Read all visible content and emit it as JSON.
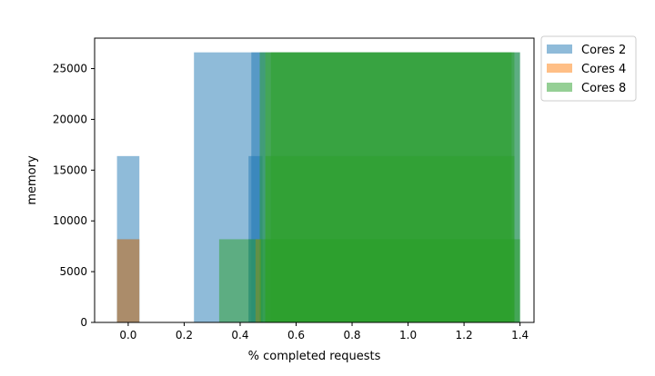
{
  "chart_data": {
    "type": "bar",
    "subtype": "overlapping histogram (alpha 0.5)",
    "title": "",
    "xlabel": "% completed requests",
    "ylabel": "memory",
    "xlim": [
      -0.12,
      1.45
    ],
    "ylim": [
      0,
      28000
    ],
    "xticks": [
      0.0,
      0.2,
      0.4,
      0.6,
      0.8,
      1.0,
      1.2,
      1.4
    ],
    "xtick_labels": [
      "0.0",
      "0.2",
      "0.4",
      "0.6",
      "0.8",
      "1.0",
      "1.2",
      "1.4"
    ],
    "yticks": [
      0,
      5000,
      10000,
      15000,
      20000,
      25000
    ],
    "ytick_labels": [
      "0",
      "5000",
      "10000",
      "15000",
      "20000",
      "25000"
    ],
    "grid": false,
    "legend_position": "outside top-right",
    "series": [
      {
        "name": "Cores 2",
        "color": "#1f77b4",
        "bars": [
          {
            "x0": -0.04,
            "x1": 0.04,
            "value": 16384
          },
          {
            "x0": -0.04,
            "x1": 0.04,
            "value": 8192
          },
          {
            "x0": 0.235,
            "x1": 1.4,
            "value": 26600
          },
          {
            "x0": 0.44,
            "x1": 0.48,
            "value": 26600
          },
          {
            "x0": 0.43,
            "x1": 0.48,
            "value": 16384
          },
          {
            "x0": 0.43,
            "x1": 0.48,
            "value": 8192
          },
          {
            "x0": 0.48,
            "x1": 0.49,
            "value": 26600
          }
        ]
      },
      {
        "name": "Cores 4",
        "color": "#ff7f0e",
        "bars": [
          {
            "x0": -0.04,
            "x1": 0.04,
            "value": 8192
          },
          {
            "x0": 0.455,
            "x1": 0.475,
            "value": 8192
          }
        ]
      },
      {
        "name": "Cores 8",
        "color": "#2ca02c",
        "bars": [
          {
            "x0": 0.325,
            "x1": 1.4,
            "value": 8192
          },
          {
            "x0": 0.47,
            "x1": 1.4,
            "value": 26600
          },
          {
            "x0": 0.49,
            "x1": 1.38,
            "value": 26600
          },
          {
            "x0": 0.49,
            "x1": 1.38,
            "value": 16384
          },
          {
            "x0": 0.49,
            "x1": 1.38,
            "value": 8192
          },
          {
            "x0": 0.51,
            "x1": 1.37,
            "value": 26600
          }
        ]
      }
    ]
  }
}
